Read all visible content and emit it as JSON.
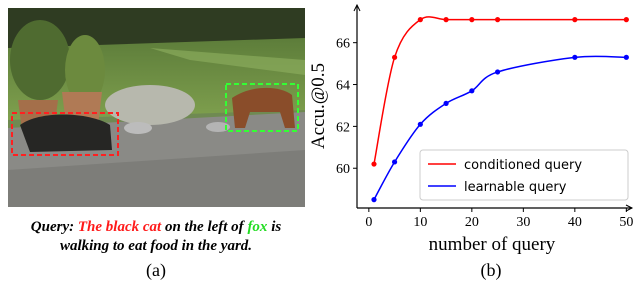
{
  "figure_a": {
    "caption": {
      "prefix": "Query:",
      "subject": "The black cat",
      "middle": "on the left of",
      "object": "fox",
      "suffix": "is",
      "line2": "walking to eat food in the yard."
    },
    "label": "(a)"
  },
  "chart_data": {
    "type": "line",
    "label": "(b)",
    "x_label": "number of query",
    "y_label": "Accu.@0.5",
    "x": [
      1,
      5,
      10,
      15,
      20,
      25,
      40,
      50
    ],
    "series": [
      {
        "name": "conditioned query",
        "color": "#ff0000",
        "values": [
          60.2,
          65.3,
          67.1,
          67.1,
          67.1,
          67.1,
          67.1,
          67.1
        ]
      },
      {
        "name": "learnable query",
        "color": "#0000ff",
        "values": [
          58.5,
          60.3,
          62.1,
          63.1,
          63.7,
          64.6,
          65.3,
          65.3
        ]
      }
    ],
    "xlim": [
      -2.3,
      51.1
    ],
    "ylim": [
      58.1,
      67.8
    ],
    "xticks": [
      0,
      10,
      20,
      30,
      40,
      50
    ],
    "yticks": [
      60,
      62,
      64,
      66
    ],
    "legend": "lower right"
  }
}
